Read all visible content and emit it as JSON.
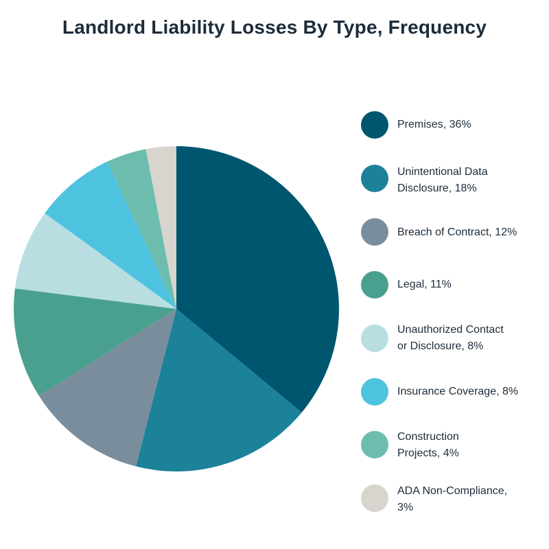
{
  "chart_data": {
    "type": "pie",
    "title": "Landlord Liability Losses By Type, Frequency",
    "slices": [
      {
        "label": "Premises, 36%",
        "value": 36,
        "color": "#00566f"
      },
      {
        "label": "Unintentional Data\nDisclosure, 18%",
        "value": 18,
        "color": "#1c8299"
      },
      {
        "label": "Breach of Contract, 12%",
        "value": 12,
        "color": "#7a8d9c"
      },
      {
        "label": "Legal, 11%",
        "value": 11,
        "color": "#4aa08f"
      },
      {
        "label": "Unauthorized Contact\nor Disclosure, 8%",
        "value": 8,
        "color": "#b8dee2"
      },
      {
        "label": "Insurance Coverage, 8%",
        "value": 8,
        "color": "#4dc3e0"
      },
      {
        "label": "Construction\nProjects, 4%",
        "value": 4,
        "color": "#6dbdaf"
      },
      {
        "label": "ADA Non-Compliance,\n3%",
        "value": 3,
        "color": "#d8d4ce"
      }
    ],
    "legend": "right"
  }
}
